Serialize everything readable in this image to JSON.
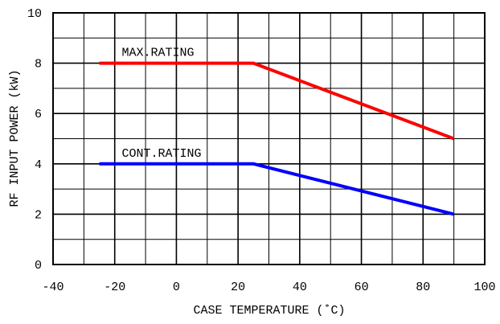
{
  "chart_data": {
    "type": "line",
    "xlabel": "CASE TEMPERATURE (˚C)",
    "ylabel": "RF INPUT POWER (kW)",
    "xlim": [
      -40,
      100
    ],
    "ylim": [
      0,
      10
    ],
    "x_ticks": [
      -40,
      -20,
      0,
      20,
      40,
      60,
      80,
      100
    ],
    "y_ticks": [
      0,
      2,
      4,
      6,
      8,
      10
    ],
    "x_tick_labels": [
      "-40",
      "-20",
      "0",
      "20",
      "40",
      "60",
      "80",
      "100"
    ],
    "y_tick_labels": [
      "0",
      "2",
      "4",
      "6",
      "8",
      "10"
    ],
    "grid": true,
    "grid_x_step": 10,
    "grid_y_step": 1,
    "series": [
      {
        "name": "MAX.RATING",
        "color": "#ff0000",
        "x": [
          -25,
          25,
          90
        ],
        "y": [
          8,
          8,
          5
        ]
      },
      {
        "name": "CONT.RATING",
        "color": "#0000ff",
        "x": [
          -25,
          25,
          90
        ],
        "y": [
          4,
          4,
          2
        ]
      }
    ]
  }
}
